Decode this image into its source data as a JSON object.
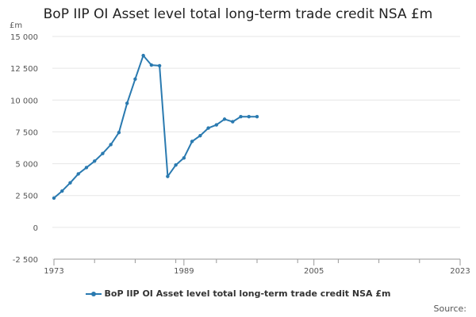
{
  "chart_data": {
    "type": "line",
    "title": "BoP IIP OI Asset level total long-term trade credit NSA £m",
    "ylabel": "£m",
    "xlabel": "",
    "ylim": [
      -2500,
      15000
    ],
    "yticks": [
      -2500,
      0,
      2500,
      5000,
      7500,
      10000,
      12500,
      15000
    ],
    "ytick_labels": [
      "-2 500",
      "0",
      "2 500",
      "5 000",
      "7 500",
      "10 000",
      "12 500",
      "15 000"
    ],
    "xlim": [
      1973,
      2023
    ],
    "xticks": [
      1973,
      1989,
      2005,
      2023
    ],
    "xtick_labels": [
      "1973",
      "1989",
      "2005",
      "2023"
    ],
    "grid": true,
    "legend_position": "bottom",
    "series": [
      {
        "name": "BoP IIP OI Asset level total long-term trade credit NSA £m",
        "color": "#2a7ab0",
        "x": [
          1973,
          1974,
          1975,
          1976,
          1977,
          1978,
          1979,
          1980,
          1981,
          1982,
          1983,
          1984,
          1985,
          1986,
          1987,
          1988,
          1989,
          1990,
          1991,
          1992,
          1993,
          1994,
          1995,
          1996,
          1997,
          1998
        ],
        "y": [
          2300,
          2850,
          3500,
          4200,
          4700,
          5200,
          5800,
          6500,
          7450,
          9750,
          11650,
          13500,
          12750,
          12700,
          4000,
          4900,
          5450,
          6750,
          7200,
          7800,
          8050,
          8500,
          8300,
          8700,
          8700,
          8700
        ]
      }
    ]
  },
  "source_label": "Source:"
}
